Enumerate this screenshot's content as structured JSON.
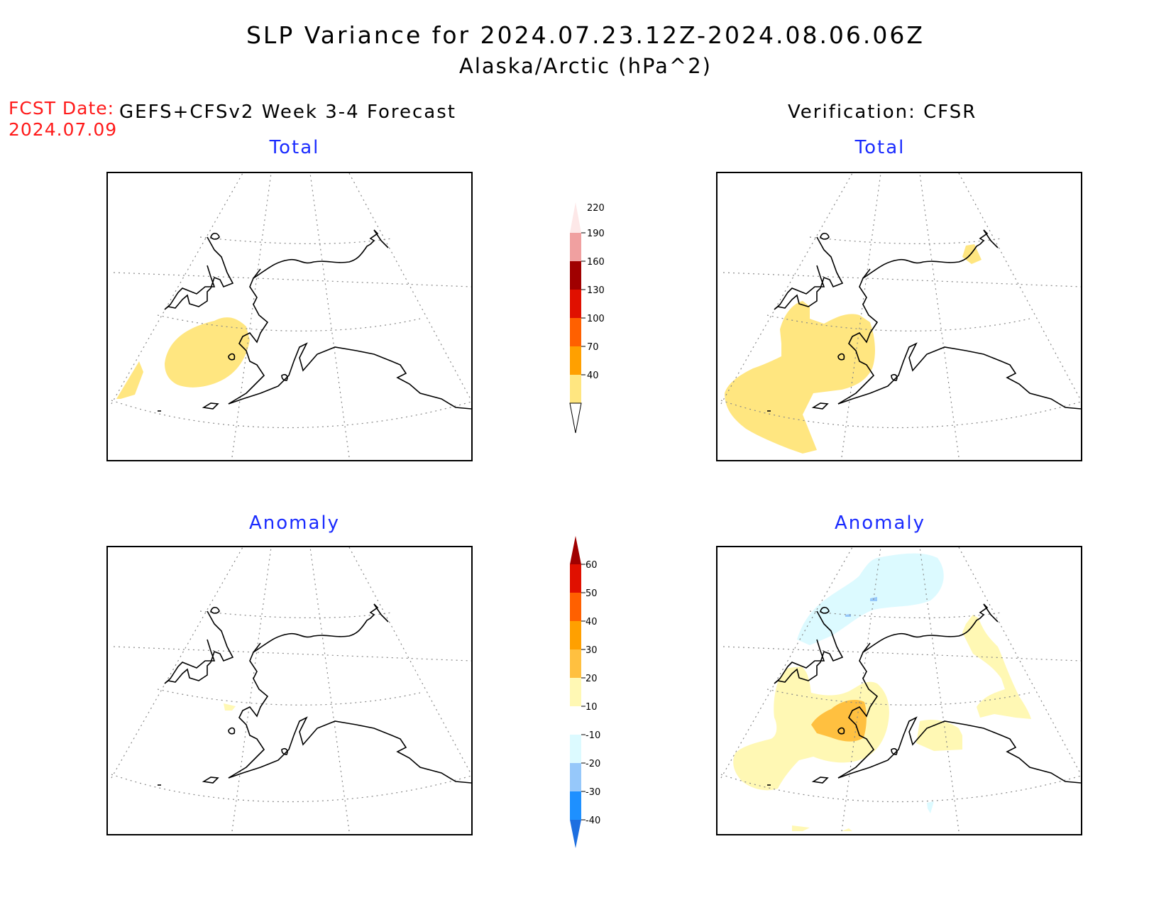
{
  "header": {
    "title": "SLP Variance for 2024.07.23.12Z-2024.08.06.06Z",
    "subtitle": "Alaska/Arctic (hPa^2)",
    "fcst_label": "FCST Date:",
    "fcst_date": "2024.07.09",
    "left_heading": "GEFS+CFSv2 Week 3-4 Forecast",
    "right_heading": "Verification: CFSR"
  },
  "panels": {
    "forecast_total": {
      "title": "Total"
    },
    "verification_total": {
      "title": "Total"
    },
    "forecast_anomaly": {
      "title": "Anomaly"
    },
    "verification_anomaly": {
      "title": "Anomaly"
    }
  },
  "colorbars": {
    "total": {
      "labels": [
        "40",
        "70",
        "100",
        "130",
        "160",
        "190",
        "220"
      ],
      "colors": [
        "#ffe680",
        "#ffa000",
        "#ff6000",
        "#e01000",
        "#a00000",
        "#f0a0a0",
        "#fde8e8"
      ]
    },
    "anomaly": {
      "labels": [
        "-40",
        "-30",
        "-20",
        "-10",
        "10",
        "20",
        "30",
        "40",
        "50",
        "60"
      ],
      "colors": [
        "#1e6fe0",
        "#1e90ff",
        "#96c8fa",
        "#dcfaff",
        "#ffffff",
        "#fff8b4",
        "#ffc040",
        "#ffa000",
        "#ff6000",
        "#e01000",
        "#a00000"
      ]
    }
  }
}
